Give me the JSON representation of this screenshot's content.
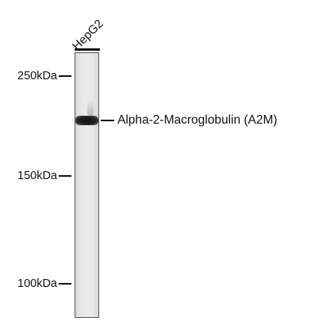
{
  "sample": {
    "label": "HepG2"
  },
  "markers": [
    {
      "label": "250kDa"
    },
    {
      "label": "150kDa"
    },
    {
      "label": "100kDa"
    }
  ],
  "band": {
    "label": "Alpha-2-Macroglobulin (A2M)"
  }
}
